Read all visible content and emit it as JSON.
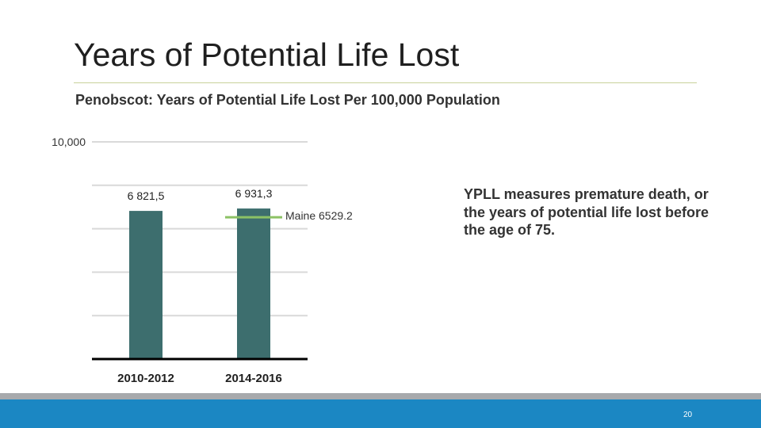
{
  "slide": {
    "title": "Years of Potential Life Lost",
    "page_number": "20",
    "side_note": "YPLL measures premature death, or the years of potential life lost before the age of 75."
  },
  "chart_data": {
    "type": "bar",
    "title": "Penobscot: Years of Potential Life Lost Per 100,000 Population",
    "categories": [
      "2010-2012",
      "2014-2016"
    ],
    "values": [
      6821.5,
      6931.3
    ],
    "value_labels": [
      "6 821,5",
      "6 931,3"
    ],
    "ylim": [
      0,
      10000
    ],
    "gridlines": [
      2000,
      4000,
      6000,
      8000,
      10000
    ],
    "y_tick_labels": [
      {
        "value": 10000,
        "label": "10,000"
      }
    ],
    "reference_line": {
      "label": "Maine 6529.2",
      "value": 6529.2
    },
    "xlabel": "",
    "ylabel": "",
    "colors": {
      "bar": "#3d6e6e",
      "reference": "#8cc265",
      "grid": "#d9d9d9",
      "axis": "#000000"
    }
  }
}
